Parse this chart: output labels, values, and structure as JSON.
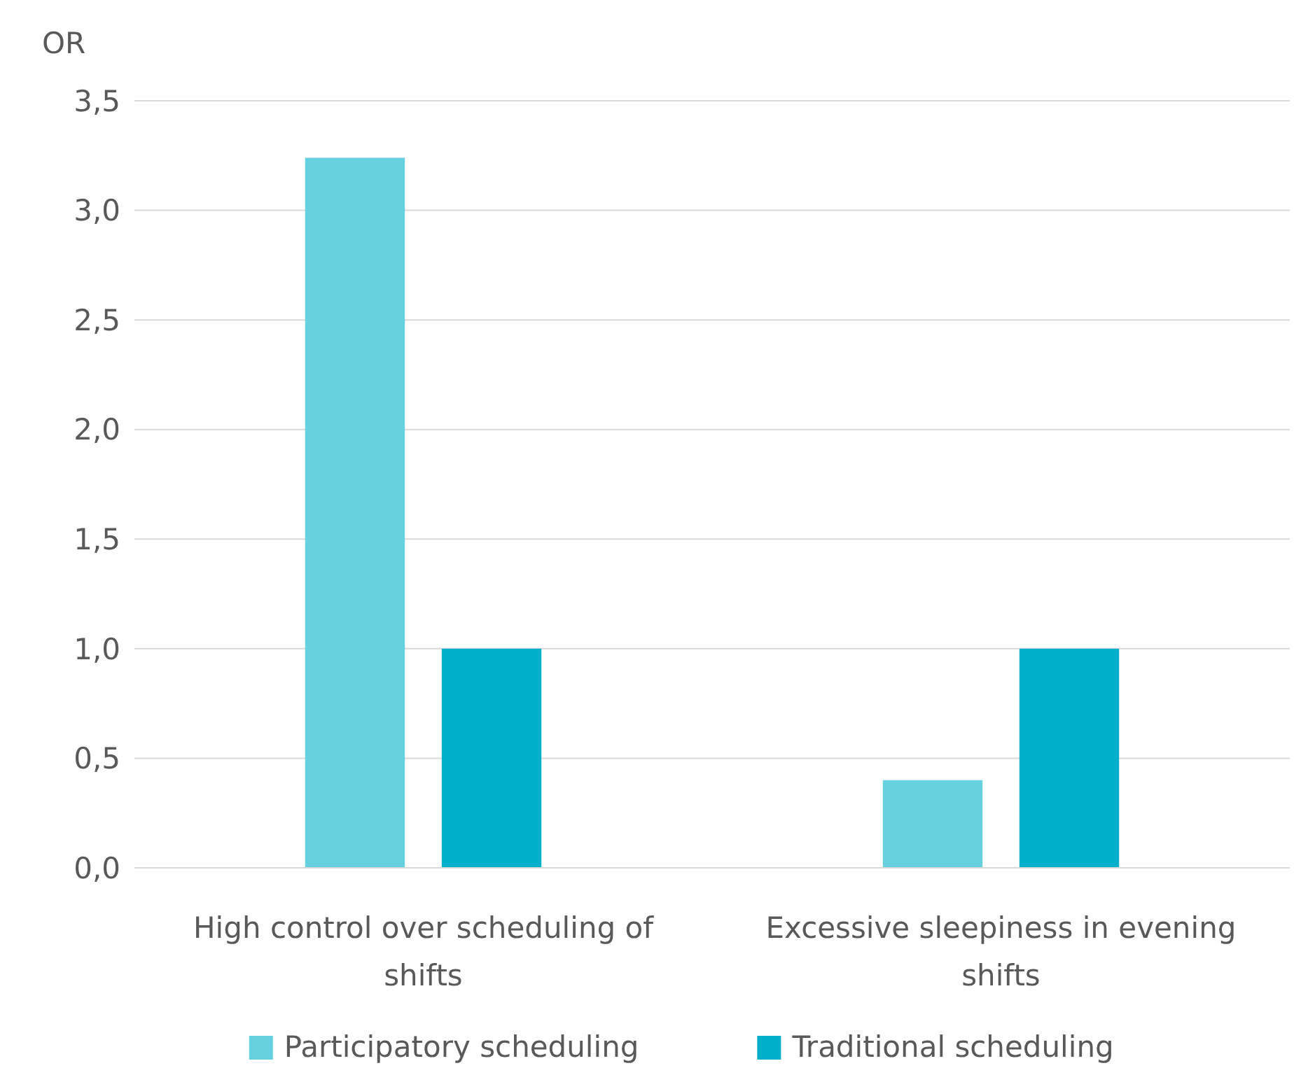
{
  "chart_data": {
    "type": "bar",
    "ylabel": "OR",
    "categories": [
      "High control over scheduling of shifts",
      "Excessive sleepiness in evening shifts"
    ],
    "series": [
      {
        "name": "Participatory scheduling",
        "color": "#66d1de",
        "values": [
          3.24,
          0.4
        ]
      },
      {
        "name": "Traditional scheduling",
        "color": "#00b0ca",
        "values": [
          1.0,
          1.0
        ]
      }
    ],
    "ylim": [
      0,
      3.5
    ],
    "yticks": [
      {
        "value": 0,
        "label": "0,0"
      },
      {
        "value": 0.5,
        "label": "0,5"
      },
      {
        "value": 1,
        "label": "1,0"
      },
      {
        "value": 1.5,
        "label": "1,5"
      },
      {
        "value": 2,
        "label": "2,0"
      },
      {
        "value": 2.5,
        "label": "2,5"
      },
      {
        "value": 3,
        "label": "3,0"
      },
      {
        "value": 3.5,
        "label": "3,5"
      }
    ],
    "grid": "y",
    "legend": "bottom"
  }
}
